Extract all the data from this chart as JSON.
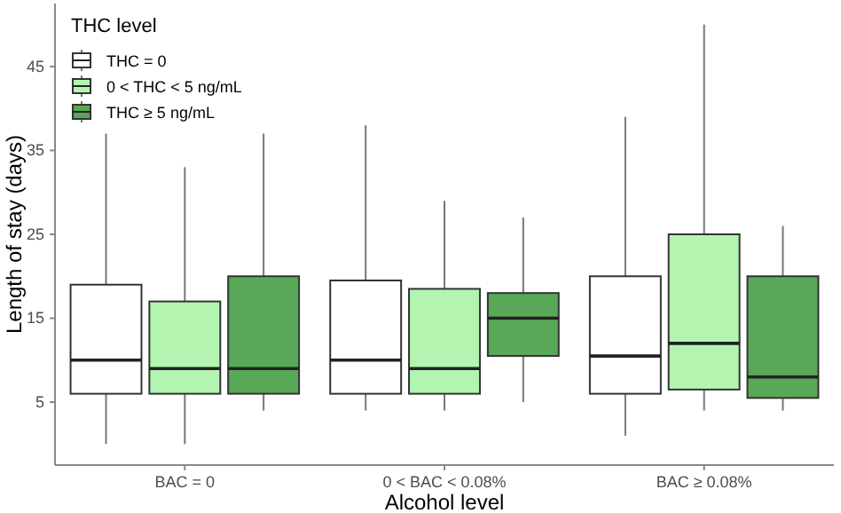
{
  "chart_data": {
    "type": "box",
    "xlabel": "Alcohol level",
    "ylabel": "Length of stay (days)",
    "legend_title": "THC level",
    "legend": "top left",
    "grid": false,
    "categories": [
      "BAC = 0",
      "0 < BAC < 0.08%",
      "BAC ≥ 0.08%"
    ],
    "ylim": [
      -2.5,
      52.5
    ],
    "yticks": [
      5,
      15,
      25,
      35,
      45
    ],
    "series": [
      {
        "name": "THC = 0",
        "color": "#ffffff",
        "boxes": [
          {
            "low": 0,
            "q1": 6,
            "median": 10,
            "q3": 19,
            "high": 37
          },
          {
            "low": 4,
            "q1": 6,
            "median": 10,
            "q3": 19.5,
            "high": 38
          },
          {
            "low": 1,
            "q1": 6,
            "median": 10.5,
            "q3": 20,
            "high": 39
          }
        ]
      },
      {
        "name": "0 < THC < 5 ng/mL",
        "color": "#b3f5b0",
        "boxes": [
          {
            "low": 0,
            "q1": 6,
            "median": 9,
            "q3": 17,
            "high": 33
          },
          {
            "low": 4,
            "q1": 6,
            "median": 9,
            "q3": 18.5,
            "high": 29
          },
          {
            "low": 4,
            "q1": 6.5,
            "median": 12,
            "q3": 25,
            "high": 50
          }
        ]
      },
      {
        "name": "THC ≥ 5 ng/mL",
        "color": "#58a858",
        "boxes": [
          {
            "low": 4,
            "q1": 6,
            "median": 9,
            "q3": 20,
            "high": 37
          },
          {
            "low": 5,
            "q1": 10.5,
            "median": 15,
            "q3": 18,
            "high": 27
          },
          {
            "low": 4,
            "q1": 5.5,
            "median": 8,
            "q3": 20,
            "high": 26
          }
        ]
      }
    ]
  }
}
